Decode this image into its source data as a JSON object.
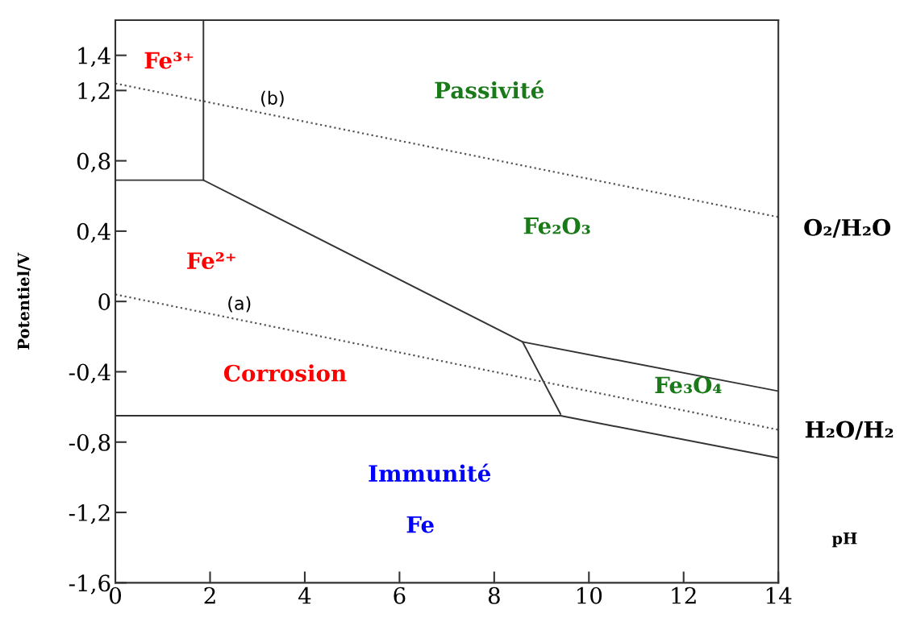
{
  "chart_data": {
    "type": "line",
    "xlabel": "pH",
    "ylabel": "Potentiel/V",
    "xlim": [
      0,
      14
    ],
    "xticks": [
      0,
      2,
      4,
      6,
      8,
      10,
      12,
      14
    ],
    "ylim": [
      -1.6,
      1.6
    ],
    "yticks": [
      {
        "value": -1.6,
        "label": "-1,6"
      },
      {
        "value": -1.2,
        "label": "-1,2"
      },
      {
        "value": -0.8,
        "label": "-0,8"
      },
      {
        "value": -0.4,
        "label": "-0,4"
      },
      {
        "value": 0,
        "label": "0"
      },
      {
        "value": 0.4,
        "label": "0,4"
      },
      {
        "value": 0.8,
        "label": "0,8"
      },
      {
        "value": 1.2,
        "label": "1,2"
      },
      {
        "value": 1.4,
        "label": "1,4"
      }
    ],
    "grid": false,
    "legend": false,
    "marker": "none",
    "series": [
      {
        "color": "#333333",
        "line_style": "solid",
        "x": [
          0,
          1.86,
          1.86
        ],
        "values": [
          0.69,
          0.69,
          1.6
        ]
      },
      {
        "color": "#333333",
        "line_style": "solid",
        "x": [
          1.86,
          8.6,
          14
        ],
        "values": [
          0.69,
          -0.23,
          -0.51
        ]
      },
      {
        "color": "#333333",
        "line_style": "solid",
        "x": [
          8.6,
          9.4
        ],
        "values": [
          -0.23,
          -0.64
        ]
      },
      {
        "color": "#333333",
        "line_style": "solid",
        "x": [
          0,
          9.4,
          14
        ],
        "values": [
          -0.65,
          -0.65,
          -0.89
        ]
      },
      {
        "color": "#555555",
        "line_style": "dotted",
        "x": [
          0,
          14
        ],
        "values": [
          1.24,
          0.48
        ]
      },
      {
        "color": "#555555",
        "line_style": "dotted",
        "x": [
          0,
          14
        ],
        "values": [
          0.04,
          -0.73
        ]
      }
    ],
    "annotations": [
      "Fe³⁺",
      "(b)",
      "Passivité",
      "Fe₂O₃",
      "Fe²⁺",
      "(a)",
      "Corrosion",
      "Fe₃O₄",
      "Immunité",
      "Fe",
      "O₂/H₂O",
      "H₂O/H₂"
    ]
  }
}
